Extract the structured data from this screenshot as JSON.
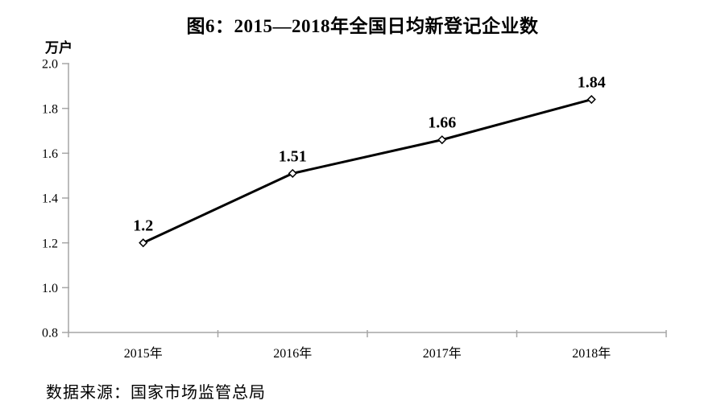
{
  "title": "图6：2015—2018年全国日均新登记企业数",
  "unit_label": "万户",
  "source": "数据来源：国家市场监管总局",
  "colors": {
    "axis": "#a6a6a6",
    "line": "#000000",
    "marker_fill": "#ffffff",
    "text": "#000000"
  },
  "chart_data": {
    "type": "line",
    "title": "图6：2015—2018年全国日均新登记企业数",
    "ylabel": "万户",
    "xlabel": "",
    "categories": [
      "2015年",
      "2016年",
      "2017年",
      "2018年"
    ],
    "values": [
      1.2,
      1.51,
      1.66,
      1.84
    ],
    "point_labels": [
      "1.2",
      "1.51",
      "1.66",
      "1.84"
    ],
    "ylim": [
      0.8,
      2.0
    ],
    "ytick_labels": [
      "0.8",
      "1.0",
      "1.2",
      "1.4",
      "1.6",
      "1.8",
      "2.0"
    ],
    "grid": false,
    "legend": "none",
    "marker": "open-diamond",
    "source": "数据来源：国家市场监管总局"
  }
}
